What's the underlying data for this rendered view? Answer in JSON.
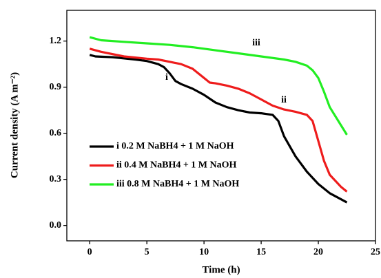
{
  "chart_data": {
    "type": "line",
    "xlabel": "Time (h)",
    "ylabel": "Current density (A m⁻²)",
    "xlim": [
      -2,
      25
    ],
    "xticks": [
      0,
      5,
      10,
      15,
      20,
      25
    ],
    "ylim": [
      -0.1,
      1.4
    ],
    "yticks": [
      {
        "value": 0,
        "label": "0.0"
      },
      0.3,
      0.6,
      0.9,
      1.2
    ],
    "legend_loc": "lower left",
    "annotations": [
      "i",
      "ii",
      "iii"
    ],
    "series": [
      {
        "name": "i 0.2 M NaBH4 + 1 M NaOH",
        "color": "#000000",
        "x": [
          0,
          0.5,
          2,
          4,
          5,
          6,
          6.5,
          7,
          7.5,
          8,
          9,
          10,
          11,
          12,
          13,
          14,
          15,
          16,
          16.5,
          17,
          18,
          19,
          20,
          21,
          22,
          22.5
        ],
        "values": [
          1.11,
          1.1,
          1.095,
          1.08,
          1.07,
          1.05,
          1.03,
          0.99,
          0.94,
          0.92,
          0.89,
          0.85,
          0.8,
          0.77,
          0.75,
          0.735,
          0.73,
          0.72,
          0.68,
          0.58,
          0.45,
          0.35,
          0.27,
          0.21,
          0.17,
          0.15
        ]
      },
      {
        "name": "ii 0.4 M NaBH4 + 1 M NaOH",
        "color": "#ee1c1c",
        "x": [
          0,
          1,
          3,
          5,
          6,
          7,
          8,
          9,
          10,
          10.5,
          11,
          12,
          13,
          14,
          15,
          16,
          17,
          18,
          19,
          19.5,
          20,
          20.5,
          21,
          22,
          22.5
        ],
        "values": [
          1.15,
          1.13,
          1.1,
          1.085,
          1.08,
          1.065,
          1.05,
          1.02,
          0.96,
          0.93,
          0.925,
          0.91,
          0.89,
          0.86,
          0.82,
          0.78,
          0.755,
          0.74,
          0.72,
          0.68,
          0.55,
          0.42,
          0.33,
          0.25,
          0.22
        ]
      },
      {
        "name": "iii 0.8 M NaBH4 + 1 M NaOH",
        "color": "#22ee22",
        "x": [
          0,
          1,
          3,
          5,
          7,
          9,
          11,
          13,
          15,
          17,
          18,
          19,
          19.5,
          20,
          20.5,
          21,
          22,
          22.5
        ],
        "values": [
          1.225,
          1.205,
          1.195,
          1.185,
          1.175,
          1.16,
          1.14,
          1.12,
          1.1,
          1.08,
          1.065,
          1.04,
          1.01,
          0.96,
          0.87,
          0.77,
          0.65,
          0.59
        ]
      }
    ]
  }
}
